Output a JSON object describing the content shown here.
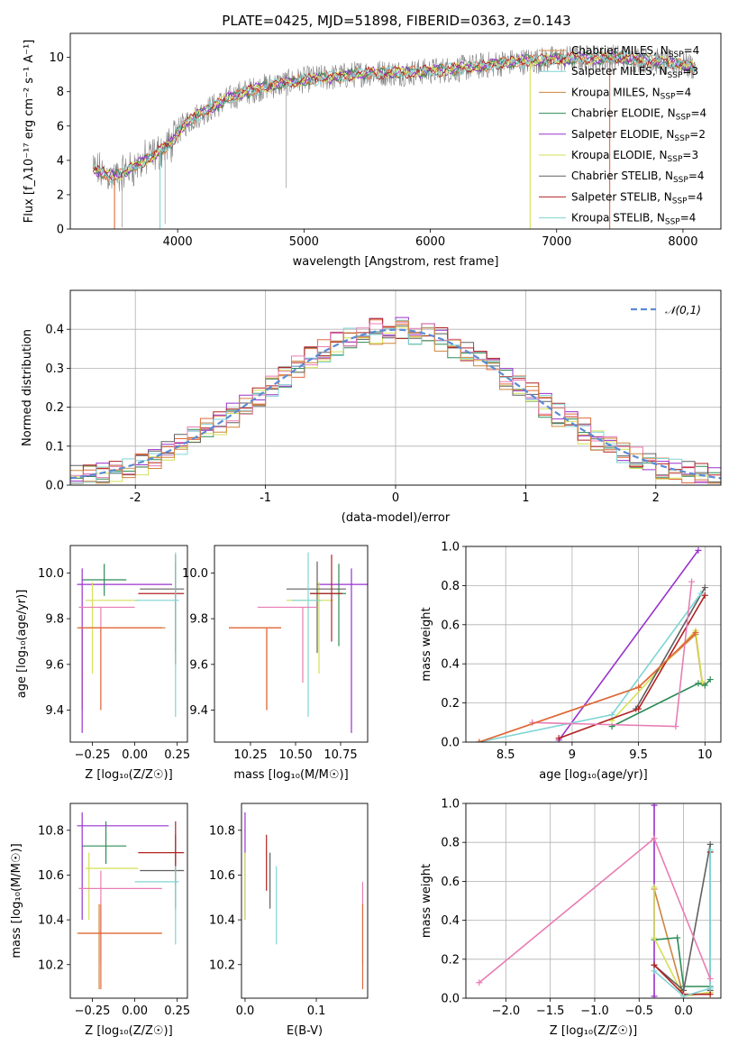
{
  "figure_title": "PLATE=0425, MJD=51898, FIBERID=0363, z=0.143",
  "colors": {
    "models": [
      "#cd853f",
      "#2e8b57",
      "#9932cc",
      "#d4e157",
      "#606060",
      "#b22222",
      "#80d4d4"
    ],
    "grey_data": "#808080",
    "normal": "#5b8bd4",
    "pink": "#e87db4",
    "orange_line": "#e06a3b"
  },
  "chart_data": [
    {
      "id": "spectrum",
      "type": "line",
      "title": "",
      "xlabel": "wavelength [Angstrom, rest frame]",
      "ylabel": "Flux [f_λ10⁻¹⁷ erg cm⁻² s⁻¹ A⁻¹]",
      "xlim": [
        3150,
        8300
      ],
      "ylim": [
        0,
        11.4
      ],
      "xticks": [
        4000,
        5000,
        6000,
        7000,
        8000
      ],
      "yticks": [
        0,
        2,
        4,
        6,
        8,
        10
      ],
      "continuum": [
        [
          3330,
          3.5
        ],
        [
          3500,
          3.0
        ],
        [
          3700,
          3.8
        ],
        [
          3850,
          4.5
        ],
        [
          3950,
          5.0
        ],
        [
          4000,
          5.6
        ],
        [
          4050,
          6.1
        ],
        [
          4150,
          6.6
        ],
        [
          4300,
          7.2
        ],
        [
          4500,
          7.9
        ],
        [
          4700,
          8.3
        ],
        [
          5000,
          8.7
        ],
        [
          5300,
          8.9
        ],
        [
          5500,
          9.1
        ],
        [
          5800,
          9.1
        ],
        [
          6000,
          9.2
        ],
        [
          6300,
          9.4
        ],
        [
          6600,
          9.7
        ],
        [
          7000,
          9.9
        ],
        [
          7500,
          10.0
        ],
        [
          8000,
          9.6
        ],
        [
          8100,
          9.4
        ]
      ],
      "grey_dips": [
        [
          3560,
          0.1
        ],
        [
          3900,
          0.3
        ],
        [
          4860,
          2.4
        ]
      ],
      "legend_position": "upper right",
      "legend": [
        {
          "label": "Chabrier MILES, N_SSP=4"
        },
        {
          "label": "Salpeter MILES, N_SSP=3"
        },
        {
          "label": "Kroupa MILES, N_SSP=4"
        },
        {
          "label": "Chabrier ELODIE, N_SSP=4"
        },
        {
          "label": "Salpeter ELODIE, N_SSP=2"
        },
        {
          "label": "Kroupa ELODIE, N_SSP=3"
        },
        {
          "label": "Chabrier STELIB, N_SSP=4"
        },
        {
          "label": "Salpeter STELIB, N_SSP=4"
        },
        {
          "label": "Kroupa STELIB, N_SSP=4"
        }
      ]
    },
    {
      "id": "residuals",
      "type": "histogram",
      "xlabel": "(data-model)/error",
      "ylabel": "Normed distribution",
      "xlim": [
        -2.5,
        2.5
      ],
      "ylim": [
        0,
        0.5
      ],
      "xticks": [
        -2,
        -1,
        0,
        1,
        2
      ],
      "yticks": [
        0.0,
        0.1,
        0.2,
        0.3,
        0.4
      ],
      "legend": "𝒩(0,1)",
      "legend_position": "upper right",
      "bins": [
        -2.5,
        -2.4,
        -2.3,
        -2.2,
        -2.1,
        -2.0,
        -1.9,
        -1.8,
        -1.7,
        -1.6,
        -1.5,
        -1.4,
        -1.3,
        -1.2,
        -1.1,
        -1.0,
        -0.9,
        -0.8,
        -0.7,
        -0.6,
        -0.5,
        -0.4,
        -0.3,
        -0.2,
        -0.1,
        0.0,
        0.1,
        0.2,
        0.3,
        0.4,
        0.5,
        0.6,
        0.7,
        0.8,
        0.9,
        1.0,
        1.1,
        1.2,
        1.3,
        1.4,
        1.5,
        1.6,
        1.7,
        1.8,
        1.9,
        2.0,
        2.1,
        2.2,
        2.3,
        2.4,
        2.5
      ],
      "series_offsets": [
        0.01,
        -0.012,
        0.02,
        -0.018,
        0.005,
        0.015,
        -0.008,
        0.012,
        -0.015
      ]
    },
    {
      "id": "Z_age",
      "type": "errorbar",
      "xlabel": "Z [log₁₀(Z/Z☉)]",
      "ylabel": "age  [log₁₀(age/yr)]",
      "xlim": [
        -0.38,
        0.31
      ],
      "ylim": [
        9.26,
        10.12
      ],
      "xticks": [
        -0.25,
        0.0,
        0.25
      ],
      "xticklabels": [
        "−0.25",
        "0.00",
        "0.25"
      ],
      "yticks": [
        9.4,
        9.6,
        9.8,
        10.0
      ],
      "points": [
        {
          "x": -0.31,
          "y": 9.76,
          "xl": -0.34,
          "xh": 0.18,
          "yl": 9.4,
          "yh": 9.76,
          "c": 0
        },
        {
          "x": -0.18,
          "y": 9.97,
          "xl": -0.31,
          "xh": -0.05,
          "yl": 9.9,
          "yh": 10.04,
          "c": 1
        },
        {
          "x": -0.31,
          "y": 9.95,
          "xl": -0.34,
          "xh": 0.22,
          "yl": 9.3,
          "yh": 10.02,
          "c": 2
        },
        {
          "x": -0.25,
          "y": 9.88,
          "xl": -0.29,
          "xh": 0.02,
          "yl": 9.56,
          "yh": 9.96,
          "c": 3
        },
        {
          "x": 0.24,
          "y": 9.93,
          "xl": 0.03,
          "xh": 0.29,
          "yl": 9.65,
          "yh": 10.05,
          "c": 4
        },
        {
          "x": 0.24,
          "y": 9.91,
          "xl": 0.02,
          "xh": 0.29,
          "yl": 9.6,
          "yh": 10.08,
          "c": 5
        },
        {
          "x": 0.24,
          "y": 9.88,
          "xl": 0.0,
          "xh": 0.26,
          "yl": 9.37,
          "yh": 10.09,
          "c": 6
        },
        {
          "x": -0.2,
          "y": 9.85,
          "xl": -0.33,
          "xh": 0.0,
          "yl": 9.4,
          "yh": 9.85,
          "c": "pink"
        },
        {
          "x": -0.2,
          "y": 9.76,
          "xl": -0.33,
          "xh": 0.16,
          "yl": 9.4,
          "yh": 9.76,
          "c": "orange"
        }
      ]
    },
    {
      "id": "mass_age",
      "type": "errorbar",
      "xlabel": "mass [log₁₀(M/M☉)]",
      "ylabel": "",
      "xlim": [
        10.05,
        10.9
      ],
      "ylim": [
        9.26,
        10.12
      ],
      "xticks": [
        10.25,
        10.5,
        10.75
      ],
      "xticklabels": [
        "10.25",
        "10.50",
        "10.75"
      ],
      "yticks": [
        9.4,
        9.6,
        9.8,
        10.0
      ],
      "points": [
        {
          "x": 10.34,
          "y": 9.76,
          "xl": 10.13,
          "xh": 10.42,
          "yl": 9.4,
          "yh": 9.76,
          "c": 0
        },
        {
          "x": 10.74,
          "y": 9.91,
          "xl": 10.58,
          "xh": 10.78,
          "yl": 9.68,
          "yh": 10.04,
          "c": 1
        },
        {
          "x": 10.81,
          "y": 9.95,
          "xl": 10.62,
          "xh": 10.92,
          "yl": 9.3,
          "yh": 10.02,
          "c": 2
        },
        {
          "x": 10.63,
          "y": 9.88,
          "xl": 10.45,
          "xh": 10.71,
          "yl": 9.56,
          "yh": 9.96,
          "c": 3
        },
        {
          "x": 10.62,
          "y": 9.93,
          "xl": 10.45,
          "xh": 10.78,
          "yl": 9.65,
          "yh": 10.05,
          "c": 4
        },
        {
          "x": 10.7,
          "y": 9.91,
          "xl": 10.58,
          "xh": 10.76,
          "yl": 9.7,
          "yh": 10.08,
          "c": 5
        },
        {
          "x": 10.57,
          "y": 9.88,
          "xl": 10.48,
          "xh": 10.64,
          "yl": 9.37,
          "yh": 10.09,
          "c": 6
        },
        {
          "x": 10.54,
          "y": 9.85,
          "xl": 10.29,
          "xh": 10.62,
          "yl": 9.52,
          "yh": 9.85,
          "c": "pink"
        },
        {
          "x": 10.34,
          "y": 9.76,
          "xl": 10.13,
          "xh": 10.42,
          "yl": 9.4,
          "yh": 9.76,
          "c": "orange"
        }
      ]
    },
    {
      "id": "age_weight",
      "type": "line",
      "xlabel": "age  [log₁₀(age/yr)]",
      "ylabel": "mass weight",
      "xlim": [
        8.2,
        10.12
      ],
      "ylim": [
        0.0,
        1.0
      ],
      "xticks": [
        8.5,
        9.0,
        9.5,
        10.0
      ],
      "yticks": [
        0.0,
        0.2,
        0.4,
        0.6,
        0.8,
        1.0
      ],
      "series": [
        {
          "c": 0,
          "points": [
            [
              8.3,
              0.0
            ],
            [
              9.5,
              0.28
            ],
            [
              9.93,
              0.55
            ],
            [
              9.98,
              0.3
            ]
          ]
        },
        {
          "c": 1,
          "points": [
            [
              9.3,
              0.08
            ],
            [
              9.95,
              0.3
            ],
            [
              10.0,
              0.29
            ],
            [
              10.04,
              0.32
            ]
          ]
        },
        {
          "c": 2,
          "points": [
            [
              8.9,
              0.01
            ],
            [
              9.95,
              0.98
            ]
          ]
        },
        {
          "c": 3,
          "points": [
            [
              9.3,
              0.11
            ],
            [
              9.93,
              0.57
            ],
            [
              9.98,
              0.31
            ]
          ]
        },
        {
          "c": 4,
          "points": [
            [
              9.48,
              0.17
            ],
            [
              10.0,
              0.79
            ]
          ]
        },
        {
          "c": 5,
          "points": [
            [
              8.9,
              0.02
            ],
            [
              9.5,
              0.17
            ],
            [
              10.0,
              0.75
            ]
          ]
        },
        {
          "c": 6,
          "points": [
            [
              8.3,
              0.0
            ],
            [
              9.3,
              0.14
            ],
            [
              9.97,
              0.76
            ]
          ]
        },
        {
          "c": "pink",
          "points": [
            [
              8.7,
              0.1
            ],
            [
              9.78,
              0.08
            ],
            [
              9.9,
              0.82
            ]
          ]
        },
        {
          "c": "orange",
          "points": [
            [
              8.3,
              0.0
            ],
            [
              9.5,
              0.28
            ],
            [
              9.93,
              0.56
            ]
          ]
        }
      ]
    },
    {
      "id": "Z_mass",
      "type": "errorbar",
      "xlabel": "Z [log₁₀(Z/Z☉)]",
      "ylabel": "mass [log₁₀(M/M☉)]",
      "xlim": [
        -0.38,
        0.31
      ],
      "ylim": [
        10.05,
        10.92
      ],
      "xticks": [
        -0.25,
        0.0,
        0.25
      ],
      "xticklabels": [
        "−0.25",
        "0.00",
        "0.25"
      ],
      "yticks": [
        10.2,
        10.4,
        10.6,
        10.8
      ],
      "points": [
        {
          "x": -0.21,
          "y": 10.34,
          "xl": -0.34,
          "xh": 0.16,
          "yl": 10.09,
          "yh": 10.47,
          "c": 0
        },
        {
          "x": -0.17,
          "y": 10.73,
          "xl": -0.31,
          "xh": -0.05,
          "yl": 10.65,
          "yh": 10.84,
          "c": 1
        },
        {
          "x": -0.31,
          "y": 10.82,
          "xl": -0.34,
          "xh": 0.2,
          "yl": 10.4,
          "yh": 10.88,
          "c": 2
        },
        {
          "x": -0.27,
          "y": 10.63,
          "xl": -0.29,
          "xh": 0.02,
          "yl": 10.4,
          "yh": 10.7,
          "c": 3
        },
        {
          "x": 0.24,
          "y": 10.62,
          "xl": 0.03,
          "xh": 0.29,
          "yl": 10.45,
          "yh": 10.78,
          "c": 4
        },
        {
          "x": 0.24,
          "y": 10.7,
          "xl": 0.02,
          "xh": 0.29,
          "yl": 10.56,
          "yh": 10.84,
          "c": 5
        },
        {
          "x": 0.24,
          "y": 10.57,
          "xl": 0.0,
          "xh": 0.26,
          "yl": 10.29,
          "yh": 10.64,
          "c": 6
        },
        {
          "x": -0.2,
          "y": 10.54,
          "xl": -0.33,
          "xh": 0.16,
          "yl": 10.2,
          "yh": 10.62,
          "c": "pink"
        },
        {
          "x": -0.2,
          "y": 10.34,
          "xl": -0.33,
          "xh": 0.16,
          "yl": 10.09,
          "yh": 10.47,
          "c": "orange"
        }
      ]
    },
    {
      "id": "ebv_mass",
      "type": "errorbar",
      "xlabel": "E(B-V)",
      "ylabel": "",
      "xlim": [
        -0.005,
        0.172
      ],
      "ylim": [
        10.05,
        10.92
      ],
      "xticks": [
        0.0,
        0.1
      ],
      "xticklabels": [
        "0.0",
        "0.1"
      ],
      "yticks": [
        10.2,
        10.4,
        10.6,
        10.8
      ],
      "points": [
        {
          "x": 0.0,
          "y": 10.82,
          "yl": 10.4,
          "yh": 10.88,
          "c": 2
        },
        {
          "x": 0.0,
          "y": 10.63,
          "yl": 10.4,
          "yh": 10.7,
          "c": 3
        },
        {
          "x": 0.03,
          "y": 10.62,
          "yl": 10.53,
          "yh": 10.78,
          "c": 5
        },
        {
          "x": 0.035,
          "y": 10.62,
          "yl": 10.45,
          "yh": 10.7,
          "c": 4
        },
        {
          "x": 0.044,
          "y": 10.57,
          "yl": 10.29,
          "yh": 10.64,
          "c": 6
        },
        {
          "x": 0.165,
          "y": 10.54,
          "yl": 10.2,
          "yh": 10.57,
          "c": "pink"
        },
        {
          "x": 0.165,
          "y": 10.34,
          "yl": 10.09,
          "yh": 10.47,
          "c": "orange"
        }
      ]
    },
    {
      "id": "Z_weight",
      "type": "line",
      "xlabel": "Z [log₁₀(Z/Z☉)]",
      "ylabel": "mass weight",
      "xlim": [
        -2.45,
        0.42
      ],
      "ylim": [
        0.0,
        1.0
      ],
      "xticks": [
        -2.0,
        -1.5,
        -1.0,
        -0.5,
        0.0
      ],
      "xticklabels": [
        "−2.0",
        "−1.5",
        "−1.0",
        "−0.5",
        "0.0"
      ],
      "yticks": [
        0.0,
        0.2,
        0.4,
        0.6,
        0.8,
        1.0
      ],
      "series": [
        {
          "c": 0,
          "points": [
            [
              -0.33,
              0.56
            ],
            [
              0.0,
              0.01
            ],
            [
              0.3,
              0.03
            ]
          ]
        },
        {
          "c": 1,
          "points": [
            [
              -0.33,
              0.3
            ],
            [
              -0.07,
              0.31
            ],
            [
              -0.0,
              0.06
            ],
            [
              0.3,
              0.06
            ]
          ]
        },
        {
          "c": 2,
          "points": [
            [
              -0.33,
              0.99
            ],
            [
              -0.33,
              0.01
            ]
          ]
        },
        {
          "c": 3,
          "points": [
            [
              -0.33,
              0.57
            ],
            [
              -0.33,
              0.31
            ],
            [
              0.0,
              0.01
            ],
            [
              0.3,
              0.03
            ]
          ]
        },
        {
          "c": 4,
          "points": [
            [
              -0.33,
              0.17
            ],
            [
              0.0,
              0.04
            ],
            [
              0.3,
              0.79
            ],
            [
              0.3,
              0.04
            ]
          ]
        },
        {
          "c": 5,
          "points": [
            [
              -0.33,
              0.17
            ],
            [
              0.0,
              0.02
            ],
            [
              0.3,
              0.02
            ],
            [
              0.3,
              0.75
            ]
          ]
        },
        {
          "c": 6,
          "points": [
            [
              -0.33,
              0.14
            ],
            [
              0.0,
              0.01
            ],
            [
              0.3,
              0.05
            ],
            [
              0.3,
              0.76
            ]
          ]
        },
        {
          "c": "pink",
          "points": [
            [
              -2.3,
              0.08
            ],
            [
              -0.33,
              0.82
            ],
            [
              0.3,
              0.1
            ]
          ]
        }
      ]
    }
  ]
}
